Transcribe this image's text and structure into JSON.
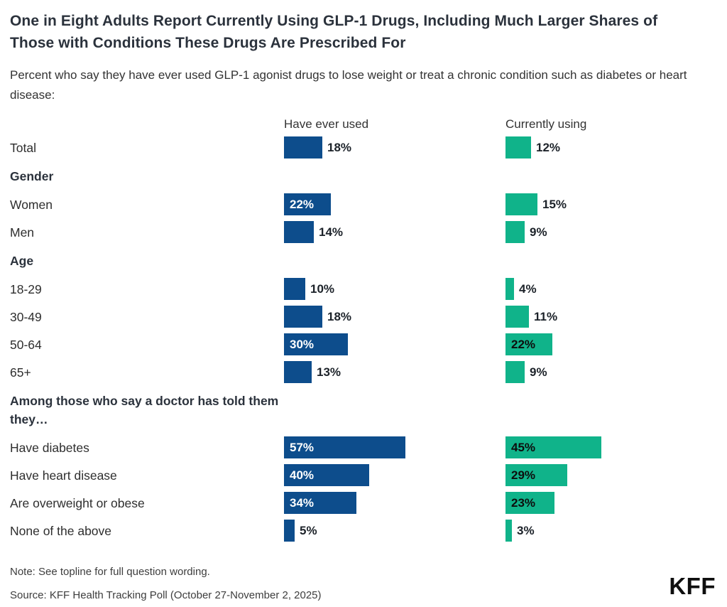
{
  "header": {
    "title": "One in Eight Adults Report Currently Using GLP-1 Drugs, Including Much Larger Shares of Those with Conditions These Drugs Are Prescribed For",
    "subtitle": "Percent who say they have ever used GLP-1 agonist drugs to lose weight or treat a chronic condition such as diabetes or heart disease:"
  },
  "chart_data": {
    "type": "bar",
    "orientation": "horizontal",
    "unit": "%",
    "xlim": [
      0,
      100
    ],
    "legend_position": "column headers above bars",
    "grid": false,
    "series": [
      {
        "name": "Have ever used",
        "color": "#0d4d8c",
        "inside_label_color": "#ffffff"
      },
      {
        "name": "Currently using",
        "color": "#10b38a",
        "inside_label_color": "#0d0d0d"
      }
    ],
    "rows": [
      {
        "type": "data",
        "label": "Total",
        "values": [
          18,
          12
        ]
      },
      {
        "type": "group",
        "label": "Gender"
      },
      {
        "type": "data",
        "label": "Women",
        "values": [
          22,
          15
        ]
      },
      {
        "type": "data",
        "label": "Men",
        "values": [
          14,
          9
        ]
      },
      {
        "type": "group",
        "label": "Age"
      },
      {
        "type": "data",
        "label": "18-29",
        "values": [
          10,
          4
        ]
      },
      {
        "type": "data",
        "label": "30-49",
        "values": [
          18,
          11
        ]
      },
      {
        "type": "data",
        "label": "50-64",
        "values": [
          30,
          22
        ]
      },
      {
        "type": "data",
        "label": "65+",
        "values": [
          13,
          9
        ]
      },
      {
        "type": "group",
        "label": "Among those who say a doctor has told them they…"
      },
      {
        "type": "data",
        "label": "Have diabetes",
        "values": [
          57,
          45
        ]
      },
      {
        "type": "data",
        "label": "Have heart disease",
        "values": [
          40,
          29
        ]
      },
      {
        "type": "data",
        "label": "Are overweight or obese",
        "values": [
          34,
          23
        ]
      },
      {
        "type": "data",
        "label": "None of the above",
        "values": [
          5,
          3
        ]
      }
    ]
  },
  "footer": {
    "note": "Note: See topline for full question wording.",
    "source": "Source: KFF Health Tracking Poll (October 27-November 2, 2025)",
    "logo": "KFF"
  }
}
